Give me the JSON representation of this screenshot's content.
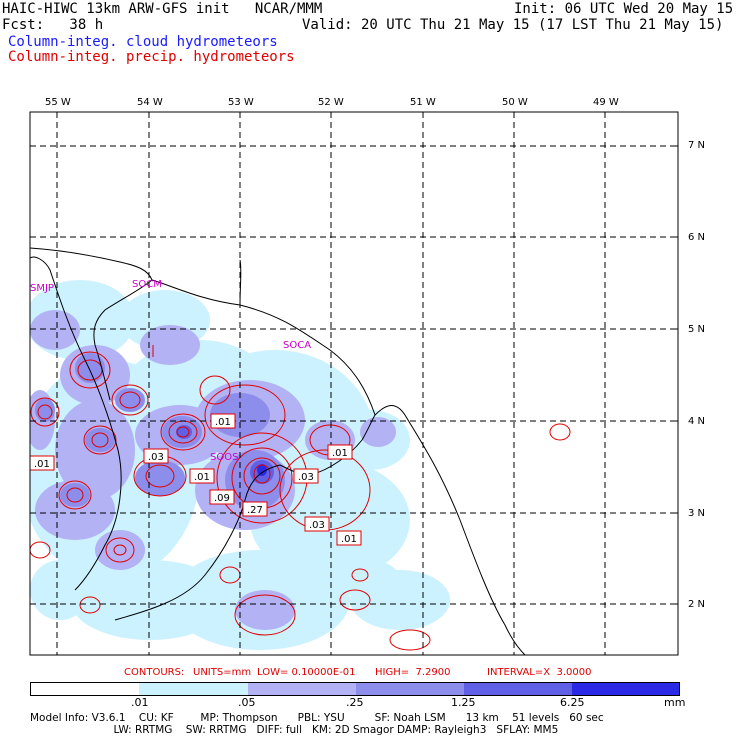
{
  "header": {
    "title": "HAIC-HIWC 13km ARW-GFS init   NCAR/MMM",
    "init": "Init: 06 UTC Wed 20 May 15",
    "fcst": "Fcst:   38 h",
    "valid": "Valid: 20 UTC Thu 21 May 15 (17 LST Thu 21 May 15)",
    "legend_cloud": "Column-integ. cloud hydrometeors",
    "legend_precip": "Column-integ. precip. hydrometeors"
  },
  "map": {
    "lon_labels": [
      "55 W",
      "54 W",
      "53 W",
      "52 W",
      "51 W",
      "50 W",
      "49 W"
    ],
    "lat_labels": [
      "7 N",
      "6 N",
      "5 N",
      "4 N",
      "3 N",
      "2 N"
    ],
    "stations": [
      "SMJP",
      "SOCM",
      "SOCA",
      "SOOS"
    ],
    "contour_labels": [
      ".01",
      ".03",
      ".01",
      ".01",
      ".01",
      ".09",
      ".27",
      ".03",
      ".03",
      ".01"
    ]
  },
  "contour_info": {
    "contours": "CONTOURS:",
    "units": "UNITS=mm",
    "low": "LOW= 0.10000E-01",
    "high": "HIGH=  7.2900",
    "interval": "INTERVAL=X  3.0000"
  },
  "colorbar": {
    "labels": [
      ".01",
      ".05",
      ".25",
      "1.25",
      "6.25"
    ],
    "unit": "mm",
    "colors": [
      "#ffffff",
      "#ccf2ff",
      "#b2b2f5",
      "#8d8deb",
      "#6060e6",
      "#2a2ae6"
    ]
  },
  "model_info": {
    "line1": "Model Info: V3.6.1    CU: KF        MP: Thompson      PBL: YSU         SF: Noah LSM      13 km    51 levels   60 sec",
    "line2": "                         LW: RRTMG    SW: RRTMG   DIFF: full   KM: 2D Smagor DAMP: Rayleigh3   SFLAY: MM5"
  }
}
